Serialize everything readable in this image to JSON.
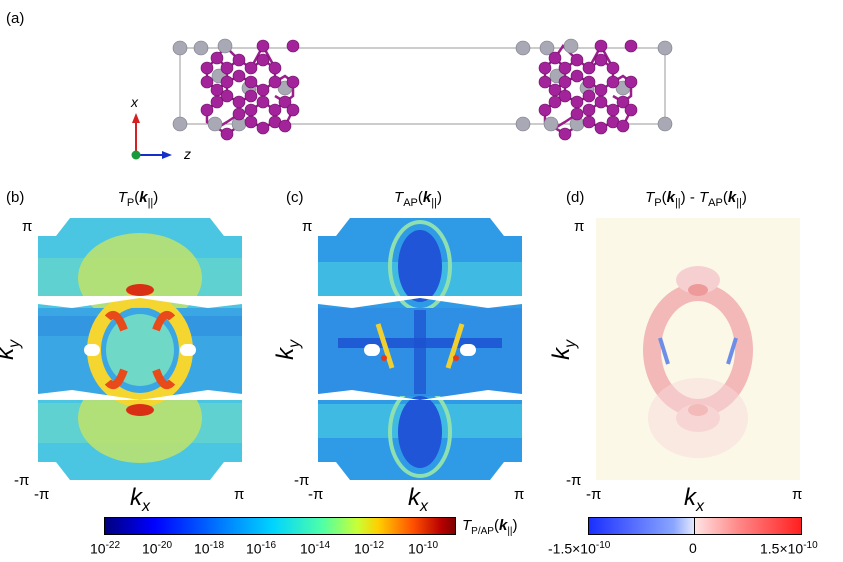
{
  "panel_labels": {
    "a": "(a)",
    "b": "(b)",
    "c": "(c)",
    "d": "(d)"
  },
  "axes_3d": {
    "x_label": "x",
    "z_label": "z"
  },
  "titles": {
    "b": {
      "T": "T",
      "sub": "P",
      "k": "k",
      "ksub": "||"
    },
    "c": {
      "T": "T",
      "sub": "AP",
      "k": "k",
      "ksub": "||"
    },
    "d": {
      "t1": "T",
      "s1": "P",
      "k": "k",
      "ksub": "||",
      "minus": " - ",
      "t2": "T",
      "s2": "AP"
    }
  },
  "ticks": {
    "pi": "π",
    "neg_pi": "-π"
  },
  "axis_labels": {
    "kx": "k",
    "kx_sub": "x",
    "ky": "k",
    "ky_sub": "y"
  },
  "colorbar_log": {
    "label_T": "T",
    "label_sub": "P/AP",
    "label_k": "k",
    "label_ksub": "||",
    "ticks": [
      {
        "base": "10",
        "exp": "-22"
      },
      {
        "base": "10",
        "exp": "-20"
      },
      {
        "base": "10",
        "exp": "-18"
      },
      {
        "base": "10",
        "exp": "-16"
      },
      {
        "base": "10",
        "exp": "-14"
      },
      {
        "base": "10",
        "exp": "-12"
      },
      {
        "base": "10",
        "exp": "-10"
      }
    ]
  },
  "colorbar_diff": {
    "ticks": [
      {
        "text": "-1.5×10",
        "exp": "-10"
      },
      {
        "text": "0",
        "exp": ""
      },
      {
        "text": "1.5×10",
        "exp": "-10"
      }
    ]
  },
  "colors": {
    "atom_mn": "#9b1e8c",
    "atom_pt": "#a7a7b3",
    "x_axis": "#d42020",
    "z_axis": "#1530c8",
    "origin": "#1a9a3a"
  }
}
